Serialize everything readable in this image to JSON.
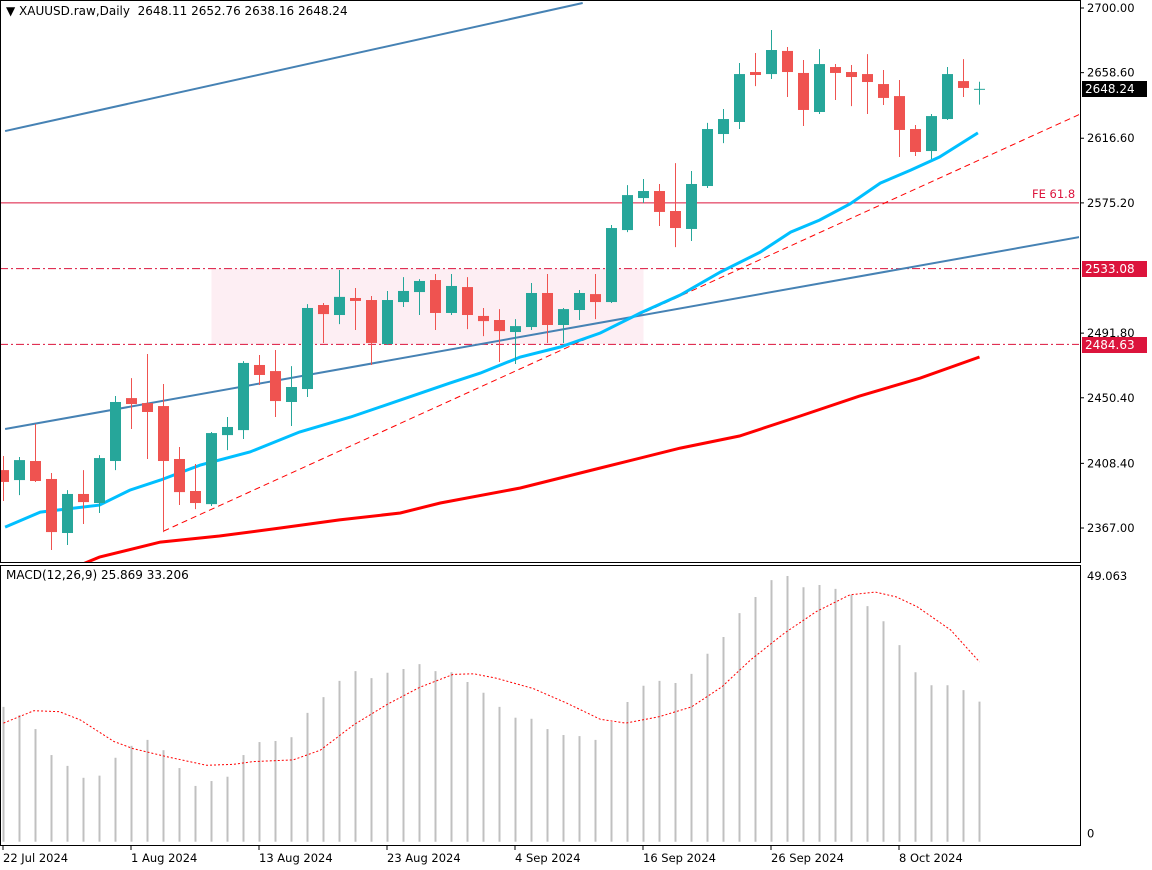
{
  "header": {
    "dropdown_icon": "triangle-down-icon",
    "symbol": "XAUUSD.raw,Daily",
    "ohlc_text": "2648.11 2652.76 2638.16 2648.24"
  },
  "colors": {
    "bull": "#26a69a",
    "bear": "#ef5350",
    "ma_fast": "#00bfff",
    "ma_slow": "#ff0000",
    "channel": "#4682b4",
    "trend_dashed": "#ff0000",
    "level": "#dc143c",
    "zone": "#fdeef3",
    "histogram": "#c0c0c0",
    "signal": "#ff0000"
  },
  "chart_data": [
    {
      "type": "candlestick",
      "title": "XAUUSD.raw,Daily",
      "ylim": [
        2340,
        2706
      ],
      "y_ticks": [
        "2700.00",
        "2658.60",
        "2616.60",
        "2575.20",
        "2491.80",
        "2450.40",
        "2408.40",
        "2367.00"
      ],
      "y_tick_values": [
        2700.0,
        2658.6,
        2616.6,
        2575.2,
        2491.8,
        2450.4,
        2408.4,
        2367.0
      ],
      "x_tick_labels": [
        {
          "index": 0,
          "label": "22 Jul 2024"
        },
        {
          "index": 8,
          "label": "1 Aug 2024"
        },
        {
          "index": 16,
          "label": "13 Aug 2024"
        },
        {
          "index": 24,
          "label": "23 Aug 2024"
        },
        {
          "index": 32,
          "label": "4 Sep 2024"
        },
        {
          "index": 40,
          "label": "16 Sep 2024"
        },
        {
          "index": 48,
          "label": "26 Sep 2024"
        },
        {
          "index": 56,
          "label": "8 Oct 2024"
        }
      ],
      "current_price": "2648.24",
      "levels": [
        {
          "price": 2533.08,
          "label": "2533.08",
          "style": "dashdot"
        },
        {
          "price": 2484.63,
          "label": "2484.63",
          "style": "dashdot"
        },
        {
          "price": 2575.2,
          "label": "FE 61.8",
          "style": "solid"
        }
      ],
      "zone": {
        "from_index": 13,
        "to_index": 40,
        "low": 2484.63,
        "high": 2533.08
      },
      "trendlines": [
        {
          "name": "channel-upper",
          "points": [
            [
              0.1,
              2621.2
            ],
            [
              36.2,
              2703.2
            ]
          ]
        },
        {
          "name": "channel-lower",
          "points": [
            [
              0.1,
              2430.4
            ],
            [
              67.3,
              2553.4
            ]
          ]
        },
        {
          "name": "support-dashed",
          "points": [
            [
              10.0,
              2365.0
            ],
            [
              67.3,
              2632.1
            ]
          ]
        }
      ],
      "ohlc": [
        [
          2404.1,
          2413.1,
          2384.3,
          2396.5
        ],
        [
          2397.7,
          2412.5,
          2388.1,
          2410.5
        ],
        [
          2409.9,
          2433.6,
          2396.5,
          2397.1
        ],
        [
          2398.4,
          2402.2,
          2352.9,
          2364.4
        ],
        [
          2363.8,
          2391.3,
          2356.1,
          2388.8
        ],
        [
          2388.8,
          2404.1,
          2369.6,
          2383.6
        ],
        [
          2383.0,
          2413.7,
          2376.6,
          2411.8
        ],
        [
          2409.9,
          2451.5,
          2404.1,
          2447.7
        ],
        [
          2450.2,
          2463.0,
          2430.4,
          2446.4
        ],
        [
          2447.0,
          2478.4,
          2411.2,
          2441.3
        ],
        [
          2445.1,
          2459.2,
          2364.4,
          2409.9
        ],
        [
          2411.2,
          2418.9,
          2381.7,
          2390.0
        ],
        [
          2390.7,
          2408.0,
          2379.1,
          2383.0
        ],
        [
          2382.3,
          2428.5,
          2381.1,
          2427.8
        ],
        [
          2426.5,
          2438.1,
          2416.9,
          2431.7
        ],
        [
          2429.7,
          2473.9,
          2424.0,
          2472.7
        ],
        [
          2471.4,
          2477.8,
          2458.6,
          2465.0
        ],
        [
          2467.5,
          2481.0,
          2438.1,
          2448.3
        ],
        [
          2447.7,
          2470.7,
          2432.3,
          2457.3
        ],
        [
          2456.0,
          2510.4,
          2450.9,
          2507.9
        ],
        [
          2509.8,
          2511.1,
          2485.5,
          2504.0
        ],
        [
          2503.4,
          2532.2,
          2497.6,
          2515.0
        ],
        [
          2514.3,
          2520.7,
          2493.8,
          2512.4
        ],
        [
          2513.0,
          2515.6,
          2471.4,
          2485.5
        ],
        [
          2484.8,
          2518.8,
          2484.2,
          2513.0
        ],
        [
          2511.7,
          2527.7,
          2508.5,
          2518.8
        ],
        [
          2518.1,
          2526.4,
          2503.4,
          2525.2
        ],
        [
          2525.8,
          2529.7,
          2493.8,
          2504.7
        ],
        [
          2504.7,
          2529.7,
          2503.4,
          2522.0
        ],
        [
          2521.3,
          2527.7,
          2494.4,
          2503.4
        ],
        [
          2502.8,
          2507.9,
          2489.9,
          2499.5
        ],
        [
          2500.2,
          2507.2,
          2473.3,
          2493.1
        ],
        [
          2492.5,
          2500.8,
          2472.0,
          2496.3
        ],
        [
          2495.7,
          2523.9,
          2493.8,
          2517.5
        ],
        [
          2517.5,
          2529.7,
          2485.5,
          2497.0
        ],
        [
          2497.0,
          2507.9,
          2485.5,
          2507.2
        ],
        [
          2506.6,
          2519.4,
          2500.2,
          2517.5
        ],
        [
          2516.8,
          2529.7,
          2500.8,
          2511.7
        ],
        [
          2511.7,
          2561.0,
          2511.1,
          2559.1
        ],
        [
          2557.8,
          2586.6,
          2556.5,
          2580.2
        ],
        [
          2578.3,
          2590.5,
          2575.1,
          2582.8
        ],
        [
          2582.8,
          2587.3,
          2560.4,
          2569.4
        ],
        [
          2570.0,
          2600.7,
          2546.9,
          2559.1
        ],
        [
          2558.5,
          2595.6,
          2550.8,
          2587.3
        ],
        [
          2586.0,
          2626.4,
          2584.7,
          2622.5
        ],
        [
          2619.3,
          2635.3,
          2613.5,
          2628.9
        ],
        [
          2627.0,
          2664.8,
          2622.5,
          2657.7
        ],
        [
          2659.0,
          2671.2,
          2650.0,
          2657.1
        ],
        [
          2657.7,
          2685.9,
          2654.5,
          2673.1
        ],
        [
          2672.5,
          2675.0,
          2643.0,
          2659.0
        ],
        [
          2658.4,
          2666.7,
          2624.4,
          2634.7
        ],
        [
          2633.4,
          2673.7,
          2632.1,
          2664.1
        ],
        [
          2662.2,
          2664.1,
          2641.1,
          2658.4
        ],
        [
          2659.0,
          2663.5,
          2637.2,
          2655.8
        ],
        [
          2657.7,
          2670.5,
          2632.1,
          2652.6
        ],
        [
          2651.3,
          2660.3,
          2637.9,
          2642.4
        ],
        [
          2643.6,
          2653.9,
          2604.6,
          2621.9
        ],
        [
          2622.5,
          2625.1,
          2605.2,
          2607.8
        ],
        [
          2608.4,
          2632.1,
          2603.3,
          2630.8
        ],
        [
          2628.9,
          2662.2,
          2628.3,
          2657.7
        ],
        [
          2653.2,
          2667.3,
          2643.0,
          2648.8
        ],
        [
          2648.11,
          2652.76,
          2638.16,
          2648.24
        ]
      ],
      "ma_fast": [
        [
          0.1,
          2367.6
        ],
        [
          2.3,
          2377.2
        ],
        [
          6.0,
          2381.7
        ],
        [
          7.9,
          2391.3
        ],
        [
          9.8,
          2397.7
        ],
        [
          12.3,
          2407.3
        ],
        [
          15.4,
          2415.7
        ],
        [
          18.5,
          2428.5
        ],
        [
          21.7,
          2438.1
        ],
        [
          24.8,
          2448.9
        ],
        [
          27.9,
          2459.8
        ],
        [
          29.8,
          2466.2
        ],
        [
          32.3,
          2476.5
        ],
        [
          34.8,
          2482.9
        ],
        [
          37.3,
          2491.9
        ],
        [
          39.8,
          2504.7
        ],
        [
          42.3,
          2516.2
        ],
        [
          44.8,
          2530.9
        ],
        [
          47.3,
          2543.7
        ],
        [
          49.2,
          2556.5
        ],
        [
          51.0,
          2564.2
        ],
        [
          52.9,
          2574.5
        ],
        [
          54.8,
          2587.9
        ],
        [
          56.7,
          2596.2
        ],
        [
          58.5,
          2604.6
        ],
        [
          60.9,
          2620.0
        ]
      ],
      "ma_slow": [
        [
          3.0,
          2338.0
        ],
        [
          4.8,
          2343.3
        ],
        [
          6.0,
          2348.4
        ],
        [
          9.8,
          2358.0
        ],
        [
          13.5,
          2361.9
        ],
        [
          17.3,
          2367.0
        ],
        [
          21.0,
          2372.2
        ],
        [
          24.8,
          2376.6
        ],
        [
          27.3,
          2383.0
        ],
        [
          32.3,
          2392.6
        ],
        [
          37.3,
          2405.4
        ],
        [
          42.3,
          2418.2
        ],
        [
          46.0,
          2425.9
        ],
        [
          49.8,
          2438.7
        ],
        [
          53.5,
          2451.5
        ],
        [
          57.3,
          2463.0
        ],
        [
          61.0,
          2476.5
        ]
      ]
    },
    {
      "type": "bar",
      "title": "MACD(12,26,9) 25.869 33.206",
      "ylim": [
        0,
        49.063
      ],
      "y_ticks": [
        "49.063",
        "0"
      ],
      "histogram": [
        24.9,
        23.4,
        20.8,
        16.0,
        14.0,
        11.8,
        12.2,
        15.5,
        17.7,
        18.8,
        16.9,
        13.6,
        10.3,
        11.2,
        12.0,
        16.0,
        18.4,
        18.6,
        19.3,
        23.8,
        26.7,
        29.7,
        31.5,
        30.2,
        31.2,
        31.9,
        32.8,
        31.5,
        31.3,
        29.5,
        27.5,
        24.9,
        22.9,
        22.7,
        20.8,
        19.7,
        19.5,
        18.8,
        22.1,
        25.8,
        28.8,
        29.7,
        29.3,
        31.0,
        34.7,
        37.8,
        42.2,
        45.2,
        48.3,
        49.063,
        47.0,
        47.4,
        46.7,
        45.6,
        43.5,
        40.7,
        36.3,
        31.3,
        28.9,
        28.9,
        28.0,
        25.869
      ],
      "signal": [
        [
          0,
          21.9
        ],
        [
          1.9,
          24.2
        ],
        [
          3.5,
          24.0
        ],
        [
          4.8,
          22.5
        ],
        [
          6.9,
          18.5
        ],
        [
          8.1,
          17.2
        ],
        [
          10.2,
          15.7
        ],
        [
          12.7,
          14.1
        ],
        [
          14.4,
          14.3
        ],
        [
          15.6,
          14.8
        ],
        [
          18.1,
          15.1
        ],
        [
          19.8,
          16.9
        ],
        [
          21.9,
          21.6
        ],
        [
          24.0,
          25.4
        ],
        [
          26.0,
          28.5
        ],
        [
          28.1,
          30.9
        ],
        [
          29.4,
          31.0
        ],
        [
          30.8,
          30.2
        ],
        [
          33.1,
          28.3
        ],
        [
          35.2,
          25.6
        ],
        [
          37.3,
          22.6
        ],
        [
          38.9,
          21.9
        ],
        [
          41.0,
          23.1
        ],
        [
          43.0,
          24.9
        ],
        [
          44.9,
          28.6
        ],
        [
          46.7,
          33.6
        ],
        [
          48.8,
          38.5
        ],
        [
          50.8,
          42.5
        ],
        [
          52.9,
          45.6
        ],
        [
          54.5,
          46.1
        ],
        [
          55.8,
          45.2
        ],
        [
          57.1,
          43.4
        ],
        [
          59.2,
          39.1
        ],
        [
          61.0,
          33.206
        ]
      ]
    }
  ]
}
